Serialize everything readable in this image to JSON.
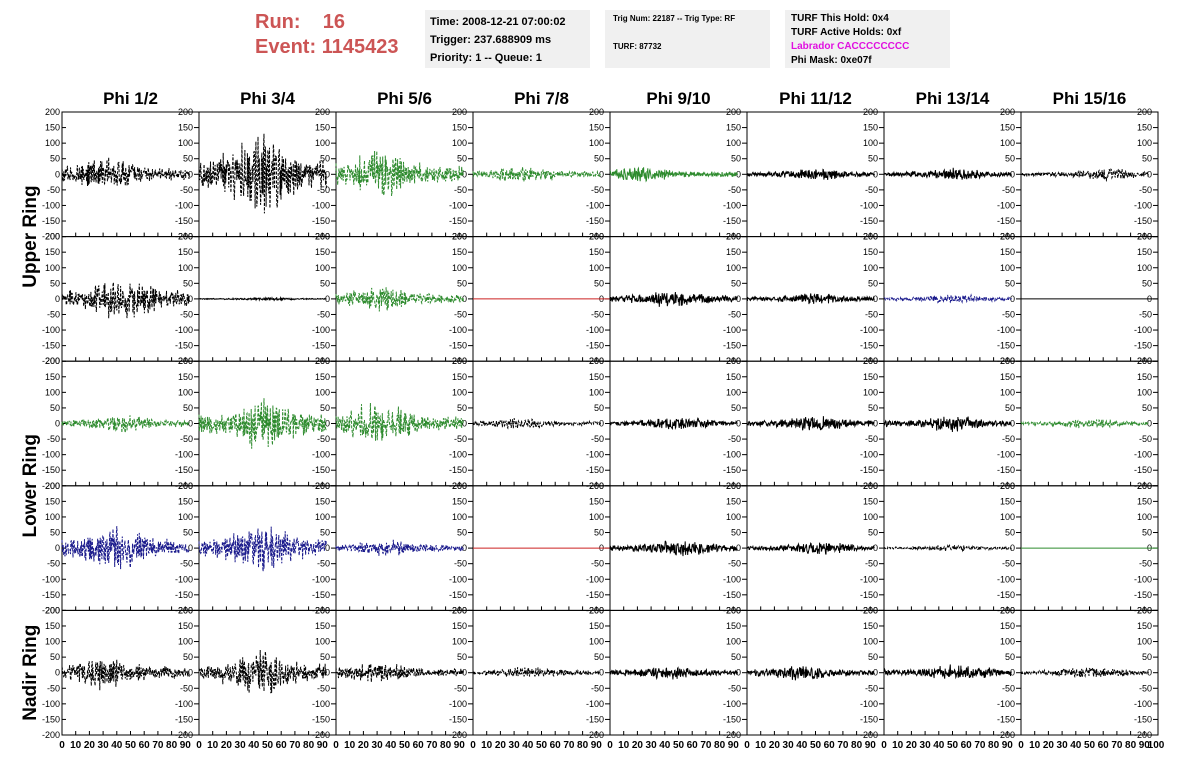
{
  "header": {
    "run_label": "Run:",
    "run_value": "16",
    "event_label": "Event:",
    "event_value": "1145423"
  },
  "info_box_1": {
    "time": "Time: 2008-12-21 07:00:02",
    "trigger": "Trigger: 237.688909 ms",
    "priority": "Priority: 1 -- Queue: 1"
  },
  "info_box_2": {
    "trig_num": "Trig Num: 22187 -- Trig Type: RF",
    "turf": "TURF: 87732"
  },
  "info_box_3": {
    "hold": "TURF This Hold: 0x4",
    "active_holds": "TURF Active Holds: 0xf",
    "labrador": "Labrador CACCCCCCCC",
    "phi_mask": "Phi Mask: 0xe07f"
  },
  "colors": {
    "black": "#000000",
    "green": "#2e8b2e",
    "blue": "#1a1a8c",
    "red": "#cc2222",
    "header_red": "#cc5555",
    "magenta": "#e010e0"
  },
  "chart_data": {
    "type": "line",
    "columns": [
      "Phi 1/2",
      "Phi 3/4",
      "Phi 5/6",
      "Phi 7/8",
      "Phi 9/10",
      "Phi 11/12",
      "Phi 13/14",
      "Phi 15/16"
    ],
    "row_labels": [
      {
        "label": "Upper Ring",
        "rows": [
          0,
          1
        ]
      },
      {
        "label": "Lower Ring",
        "rows": [
          2,
          3
        ]
      },
      {
        "label": "Nadir Ring",
        "rows": [
          4
        ]
      }
    ],
    "xlim": [
      0,
      100
    ],
    "ylim": [
      -200,
      200
    ],
    "x_ticks": [
      0,
      10,
      20,
      30,
      40,
      50,
      60,
      70,
      80,
      90
    ],
    "x_tick_labels": [
      "0",
      "10",
      "20",
      "30",
      "40",
      "50",
      "60",
      "70",
      "80",
      "90"
    ],
    "last_x_tick_label": "100",
    "y_ticks": [
      200,
      150,
      100,
      50,
      0,
      -50,
      -100,
      -150,
      -200
    ],
    "y_tick_labels": [
      "200",
      "150",
      "100",
      "50",
      "0",
      "-50",
      "-100",
      "-150",
      "-200"
    ],
    "signal_span": [
      0,
      93
    ],
    "traces": [
      [
        {
          "color": "black",
          "dashed": true,
          "amp": 60,
          "peak": 30
        },
        {
          "color": "black",
          "dashed": true,
          "amp": 150,
          "peak": 45
        },
        {
          "color": "green",
          "dashed": true,
          "amp": 85,
          "peak": 32
        },
        {
          "color": "green",
          "dashed": true,
          "amp": 30,
          "peak": 35
        },
        {
          "color": "green",
          "dashed": false,
          "amp": 28,
          "peak": 20
        },
        {
          "color": "black",
          "dashed": false,
          "amp": 22,
          "peak": 50
        },
        {
          "color": "black",
          "dashed": false,
          "amp": 22,
          "peak": 50
        },
        {
          "color": "black",
          "dashed": true,
          "amp": 22,
          "peak": 60
        }
      ],
      [
        {
          "color": "black",
          "dashed": true,
          "amp": 80,
          "peak": 45
        },
        {
          "color": "black",
          "dashed": false,
          "amp": 5,
          "peak": 50
        },
        {
          "color": "green",
          "dashed": true,
          "amp": 45,
          "peak": 32
        },
        {
          "color": "red",
          "dashed": false,
          "amp": 0,
          "peak": 50
        },
        {
          "color": "black",
          "dashed": false,
          "amp": 30,
          "peak": 45
        },
        {
          "color": "black",
          "dashed": false,
          "amp": 20,
          "peak": 50
        },
        {
          "color": "blue",
          "dashed": true,
          "amp": 16,
          "peak": 50
        },
        {
          "color": "black",
          "dashed": false,
          "amp": 0,
          "peak": 50
        }
      ],
      [
        {
          "color": "green",
          "dashed": true,
          "amp": 32,
          "peak": 45
        },
        {
          "color": "green",
          "dashed": true,
          "amp": 95,
          "peak": 48
        },
        {
          "color": "green",
          "dashed": true,
          "amp": 75,
          "peak": 30
        },
        {
          "color": "black",
          "dashed": true,
          "amp": 20,
          "peak": 35
        },
        {
          "color": "black",
          "dashed": false,
          "amp": 25,
          "peak": 50
        },
        {
          "color": "black",
          "dashed": false,
          "amp": 28,
          "peak": 50
        },
        {
          "color": "black",
          "dashed": false,
          "amp": 28,
          "peak": 50
        },
        {
          "color": "green",
          "dashed": true,
          "amp": 18,
          "peak": 50
        }
      ],
      [
        {
          "color": "blue",
          "dashed": true,
          "amp": 80,
          "peak": 40
        },
        {
          "color": "blue",
          "dashed": true,
          "amp": 85,
          "peak": 45
        },
        {
          "color": "blue",
          "dashed": true,
          "amp": 30,
          "peak": 35
        },
        {
          "color": "red",
          "dashed": false,
          "amp": 0,
          "peak": 50
        },
        {
          "color": "black",
          "dashed": false,
          "amp": 30,
          "peak": 50
        },
        {
          "color": "black",
          "dashed": false,
          "amp": 22,
          "peak": 55
        },
        {
          "color": "black",
          "dashed": true,
          "amp": 12,
          "peak": 50
        },
        {
          "color": "green",
          "dashed": false,
          "amp": 0,
          "peak": 50
        }
      ],
      [
        {
          "color": "black",
          "dashed": true,
          "amp": 60,
          "peak": 30
        },
        {
          "color": "black",
          "dashed": true,
          "amp": 85,
          "peak": 45
        },
        {
          "color": "black",
          "dashed": true,
          "amp": 40,
          "peak": 30
        },
        {
          "color": "black",
          "dashed": true,
          "amp": 22,
          "peak": 40
        },
        {
          "color": "black",
          "dashed": false,
          "amp": 25,
          "peak": 40
        },
        {
          "color": "black",
          "dashed": false,
          "amp": 30,
          "peak": 40
        },
        {
          "color": "black",
          "dashed": false,
          "amp": 30,
          "peak": 55
        },
        {
          "color": "black",
          "dashed": true,
          "amp": 22,
          "peak": 50
        }
      ]
    ]
  }
}
